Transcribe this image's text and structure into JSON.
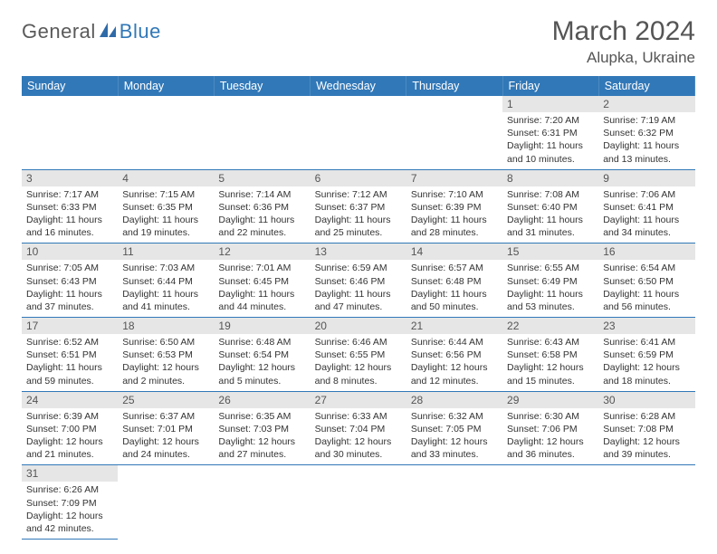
{
  "brand": {
    "part1": "General",
    "part2": "Blue",
    "icon_color": "#2f6aa8"
  },
  "title": "March 2024",
  "location": "Alupka, Ukraine",
  "colors": {
    "header_bg": "#3178b8",
    "header_text": "#ffffff",
    "daynum_bg": "#e6e6e6",
    "row_border": "#3178b8"
  },
  "weekdays": [
    "Sunday",
    "Monday",
    "Tuesday",
    "Wednesday",
    "Thursday",
    "Friday",
    "Saturday"
  ],
  "weeks": [
    [
      {
        "n": "",
        "l": []
      },
      {
        "n": "",
        "l": []
      },
      {
        "n": "",
        "l": []
      },
      {
        "n": "",
        "l": []
      },
      {
        "n": "",
        "l": []
      },
      {
        "n": "1",
        "l": [
          "Sunrise: 7:20 AM",
          "Sunset: 6:31 PM",
          "Daylight: 11 hours",
          "and 10 minutes."
        ]
      },
      {
        "n": "2",
        "l": [
          "Sunrise: 7:19 AM",
          "Sunset: 6:32 PM",
          "Daylight: 11 hours",
          "and 13 minutes."
        ]
      }
    ],
    [
      {
        "n": "3",
        "l": [
          "Sunrise: 7:17 AM",
          "Sunset: 6:33 PM",
          "Daylight: 11 hours",
          "and 16 minutes."
        ]
      },
      {
        "n": "4",
        "l": [
          "Sunrise: 7:15 AM",
          "Sunset: 6:35 PM",
          "Daylight: 11 hours",
          "and 19 minutes."
        ]
      },
      {
        "n": "5",
        "l": [
          "Sunrise: 7:14 AM",
          "Sunset: 6:36 PM",
          "Daylight: 11 hours",
          "and 22 minutes."
        ]
      },
      {
        "n": "6",
        "l": [
          "Sunrise: 7:12 AM",
          "Sunset: 6:37 PM",
          "Daylight: 11 hours",
          "and 25 minutes."
        ]
      },
      {
        "n": "7",
        "l": [
          "Sunrise: 7:10 AM",
          "Sunset: 6:39 PM",
          "Daylight: 11 hours",
          "and 28 minutes."
        ]
      },
      {
        "n": "8",
        "l": [
          "Sunrise: 7:08 AM",
          "Sunset: 6:40 PM",
          "Daylight: 11 hours",
          "and 31 minutes."
        ]
      },
      {
        "n": "9",
        "l": [
          "Sunrise: 7:06 AM",
          "Sunset: 6:41 PM",
          "Daylight: 11 hours",
          "and 34 minutes."
        ]
      }
    ],
    [
      {
        "n": "10",
        "l": [
          "Sunrise: 7:05 AM",
          "Sunset: 6:43 PM",
          "Daylight: 11 hours",
          "and 37 minutes."
        ]
      },
      {
        "n": "11",
        "l": [
          "Sunrise: 7:03 AM",
          "Sunset: 6:44 PM",
          "Daylight: 11 hours",
          "and 41 minutes."
        ]
      },
      {
        "n": "12",
        "l": [
          "Sunrise: 7:01 AM",
          "Sunset: 6:45 PM",
          "Daylight: 11 hours",
          "and 44 minutes."
        ]
      },
      {
        "n": "13",
        "l": [
          "Sunrise: 6:59 AM",
          "Sunset: 6:46 PM",
          "Daylight: 11 hours",
          "and 47 minutes."
        ]
      },
      {
        "n": "14",
        "l": [
          "Sunrise: 6:57 AM",
          "Sunset: 6:48 PM",
          "Daylight: 11 hours",
          "and 50 minutes."
        ]
      },
      {
        "n": "15",
        "l": [
          "Sunrise: 6:55 AM",
          "Sunset: 6:49 PM",
          "Daylight: 11 hours",
          "and 53 minutes."
        ]
      },
      {
        "n": "16",
        "l": [
          "Sunrise: 6:54 AM",
          "Sunset: 6:50 PM",
          "Daylight: 11 hours",
          "and 56 minutes."
        ]
      }
    ],
    [
      {
        "n": "17",
        "l": [
          "Sunrise: 6:52 AM",
          "Sunset: 6:51 PM",
          "Daylight: 11 hours",
          "and 59 minutes."
        ]
      },
      {
        "n": "18",
        "l": [
          "Sunrise: 6:50 AM",
          "Sunset: 6:53 PM",
          "Daylight: 12 hours",
          "and 2 minutes."
        ]
      },
      {
        "n": "19",
        "l": [
          "Sunrise: 6:48 AM",
          "Sunset: 6:54 PM",
          "Daylight: 12 hours",
          "and 5 minutes."
        ]
      },
      {
        "n": "20",
        "l": [
          "Sunrise: 6:46 AM",
          "Sunset: 6:55 PM",
          "Daylight: 12 hours",
          "and 8 minutes."
        ]
      },
      {
        "n": "21",
        "l": [
          "Sunrise: 6:44 AM",
          "Sunset: 6:56 PM",
          "Daylight: 12 hours",
          "and 12 minutes."
        ]
      },
      {
        "n": "22",
        "l": [
          "Sunrise: 6:43 AM",
          "Sunset: 6:58 PM",
          "Daylight: 12 hours",
          "and 15 minutes."
        ]
      },
      {
        "n": "23",
        "l": [
          "Sunrise: 6:41 AM",
          "Sunset: 6:59 PM",
          "Daylight: 12 hours",
          "and 18 minutes."
        ]
      }
    ],
    [
      {
        "n": "24",
        "l": [
          "Sunrise: 6:39 AM",
          "Sunset: 7:00 PM",
          "Daylight: 12 hours",
          "and 21 minutes."
        ]
      },
      {
        "n": "25",
        "l": [
          "Sunrise: 6:37 AM",
          "Sunset: 7:01 PM",
          "Daylight: 12 hours",
          "and 24 minutes."
        ]
      },
      {
        "n": "26",
        "l": [
          "Sunrise: 6:35 AM",
          "Sunset: 7:03 PM",
          "Daylight: 12 hours",
          "and 27 minutes."
        ]
      },
      {
        "n": "27",
        "l": [
          "Sunrise: 6:33 AM",
          "Sunset: 7:04 PM",
          "Daylight: 12 hours",
          "and 30 minutes."
        ]
      },
      {
        "n": "28",
        "l": [
          "Sunrise: 6:32 AM",
          "Sunset: 7:05 PM",
          "Daylight: 12 hours",
          "and 33 minutes."
        ]
      },
      {
        "n": "29",
        "l": [
          "Sunrise: 6:30 AM",
          "Sunset: 7:06 PM",
          "Daylight: 12 hours",
          "and 36 minutes."
        ]
      },
      {
        "n": "30",
        "l": [
          "Sunrise: 6:28 AM",
          "Sunset: 7:08 PM",
          "Daylight: 12 hours",
          "and 39 minutes."
        ]
      }
    ],
    [
      {
        "n": "31",
        "l": [
          "Sunrise: 6:26 AM",
          "Sunset: 7:09 PM",
          "Daylight: 12 hours",
          "and 42 minutes."
        ]
      },
      {
        "n": "",
        "l": []
      },
      {
        "n": "",
        "l": []
      },
      {
        "n": "",
        "l": []
      },
      {
        "n": "",
        "l": []
      },
      {
        "n": "",
        "l": []
      },
      {
        "n": "",
        "l": []
      }
    ]
  ]
}
